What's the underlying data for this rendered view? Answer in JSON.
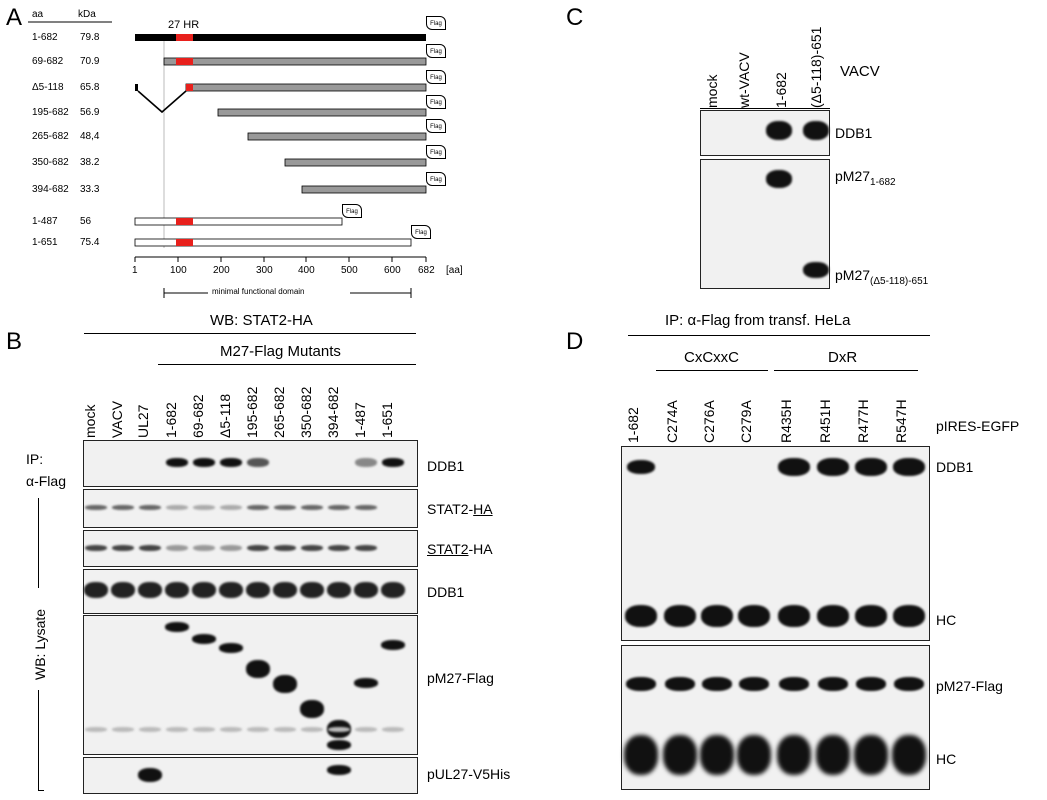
{
  "panel_labels": {
    "a": "A",
    "b": "B",
    "c": "C",
    "d": "D"
  },
  "panel_a": {
    "col_aa": "aa",
    "col_kda": "kDa",
    "hr_label": "27 HR",
    "flag": "Flag",
    "rows": [
      {
        "name": "1-682",
        "kda": "79.8"
      },
      {
        "name": "69-682",
        "kda": "70.9"
      },
      {
        "name": "Δ5-118",
        "kda": "65.8"
      },
      {
        "name": "195-682",
        "kda": "56.9"
      },
      {
        "name": "265-682",
        "kda": "48,4"
      },
      {
        "name": "350-682",
        "kda": "38.2"
      },
      {
        "name": "394-682",
        "kda": "33.3"
      },
      {
        "name": "1-487",
        "kda": "56"
      },
      {
        "name": "1-651",
        "kda": "75.4"
      }
    ],
    "axis_ticks": [
      "1",
      "100",
      "200",
      "300",
      "400",
      "500",
      "600",
      "682"
    ],
    "axis_unit": "[aa]",
    "domain_label": "minimal functional domain"
  },
  "panel_b": {
    "header": "WB: STAT2-HA",
    "mutants_label": "M27-Flag Mutants",
    "lanes": [
      "mock",
      "VACV",
      "UL27",
      "1-682",
      "69-682",
      "Δ5-118",
      "195-682",
      "265-682",
      "350-682",
      "394-682",
      "1-487",
      "1-651"
    ],
    "ip_label_1": "IP:",
    "ip_label_2": "α-Flag",
    "lysate_label": "WB: Lysate",
    "blot_labels": {
      "ddb1_ip": "DDB1",
      "stat2_ha_pre": "STAT2-",
      "stat2_ha_under": "HA",
      "stat2_under": "STAT2",
      "stat2_post": "-HA",
      "ddb1_lys": "DDB1",
      "pm27": "pM27-Flag",
      "pul27": "pUL27-V5His"
    }
  },
  "panel_c": {
    "lanes": [
      "mock",
      "wt-VACV",
      "1-682",
      "(Δ5-118)-651"
    ],
    "vacv_label": "VACV",
    "ddb1": "DDB1",
    "pm27_a": "pM27",
    "pm27_a_sub": "1-682",
    "pm27_b": "pM27",
    "pm27_b_sub": "(Δ5-118)-651"
  },
  "panel_d": {
    "header_pre": "IP: ",
    "header_alpha": "α",
    "header_post": "-Flag from transf. HeLa",
    "group1": "CxCxxC",
    "group2": "DxR",
    "lanes": [
      "1-682",
      "C274A",
      "C276A",
      "C279A",
      "R435H",
      "R451H",
      "R477H",
      "R547H"
    ],
    "pires": "pIRES-EGFP",
    "ddb1": "DDB1",
    "hc1": "HC",
    "pm27": "pM27-Flag",
    "hc2": "HC"
  }
}
